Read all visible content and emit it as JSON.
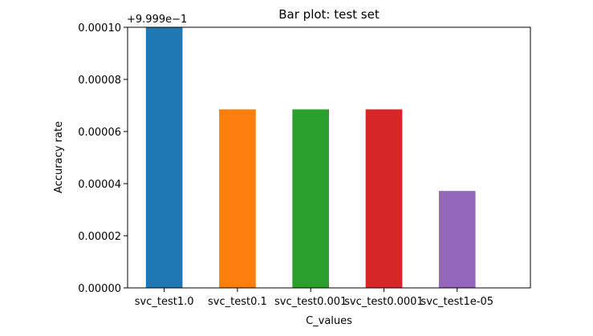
{
  "chart_data": {
    "type": "bar",
    "title": "Bar plot: test set",
    "xlabel": "C_values",
    "ylabel": "Accuracy rate",
    "y_offset_label": "+9.999e−1",
    "categories": [
      "svc_test1.0",
      "svc_test0.1",
      "svc_test0.001",
      "svc_test0.0001",
      "svc_test1e-05"
    ],
    "values": [
      0.0001,
      6.85e-05,
      6.85e-05,
      6.85e-05,
      3.72e-05
    ],
    "colors": [
      "#1f77b4",
      "#ff7f0e",
      "#2ca02c",
      "#d62728",
      "#9467bd"
    ],
    "ylim": [
      0,
      0.0001
    ],
    "xlim": [
      -0.5,
      5.0
    ],
    "yticks": [
      0,
      2e-05,
      4e-05,
      6e-05,
      8e-05,
      0.0001
    ],
    "ytick_labels": [
      "0.00000",
      "0.00002",
      "0.00004",
      "0.00006",
      "0.00008",
      "0.00010"
    ],
    "grid": false,
    "legend": "none"
  }
}
